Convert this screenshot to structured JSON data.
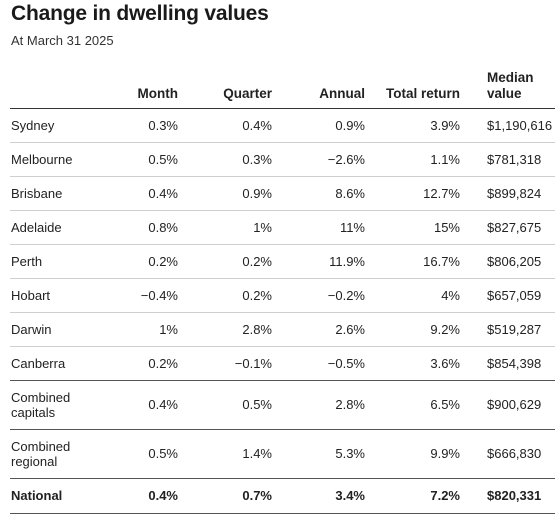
{
  "title": "Change in dwelling values",
  "subtitle": "At March 31 2025",
  "headers": {
    "region": "",
    "month": "Month",
    "quarter": "Quarter",
    "annual": "Annual",
    "total_return": "Total return",
    "median_value": "Median value"
  },
  "rows": [
    {
      "region": "Sydney",
      "month": "0.3%",
      "quarter": "0.4%",
      "annual": "0.9%",
      "total_return": "3.9%",
      "median_value": "$1,190,616"
    },
    {
      "region": "Melbourne",
      "month": "0.5%",
      "quarter": "0.3%",
      "annual": "−2.6%",
      "total_return": "1.1%",
      "median_value": "$781,318"
    },
    {
      "region": "Brisbane",
      "month": "0.4%",
      "quarter": "0.9%",
      "annual": "8.6%",
      "total_return": "12.7%",
      "median_value": "$899,824"
    },
    {
      "region": "Adelaide",
      "month": "0.8%",
      "quarter": "1%",
      "annual": "11%",
      "total_return": "15%",
      "median_value": "$827,675"
    },
    {
      "region": "Perth",
      "month": "0.2%",
      "quarter": "0.2%",
      "annual": "11.9%",
      "total_return": "16.7%",
      "median_value": "$806,205"
    },
    {
      "region": "Hobart",
      "month": "−0.4%",
      "quarter": "0.2%",
      "annual": "−0.2%",
      "total_return": "4%",
      "median_value": "$657,059"
    },
    {
      "region": "Darwin",
      "month": "1%",
      "quarter": "2.8%",
      "annual": "2.6%",
      "total_return": "9.2%",
      "median_value": "$519,287"
    },
    {
      "region": "Canberra",
      "month": "0.2%",
      "quarter": "−0.1%",
      "annual": "−0.5%",
      "total_return": "3.6%",
      "median_value": "$854,398"
    },
    {
      "region": "Combined capitals",
      "month": "0.4%",
      "quarter": "0.5%",
      "annual": "2.8%",
      "total_return": "6.5%",
      "median_value": "$900,629"
    },
    {
      "region": "Combined regional",
      "month": "0.5%",
      "quarter": "1.4%",
      "annual": "5.3%",
      "total_return": "9.9%",
      "median_value": "$666,830"
    },
    {
      "region": "National",
      "month": "0.4%",
      "quarter": "0.7%",
      "annual": "3.4%",
      "total_return": "7.2%",
      "median_value": "$820,331"
    }
  ]
}
